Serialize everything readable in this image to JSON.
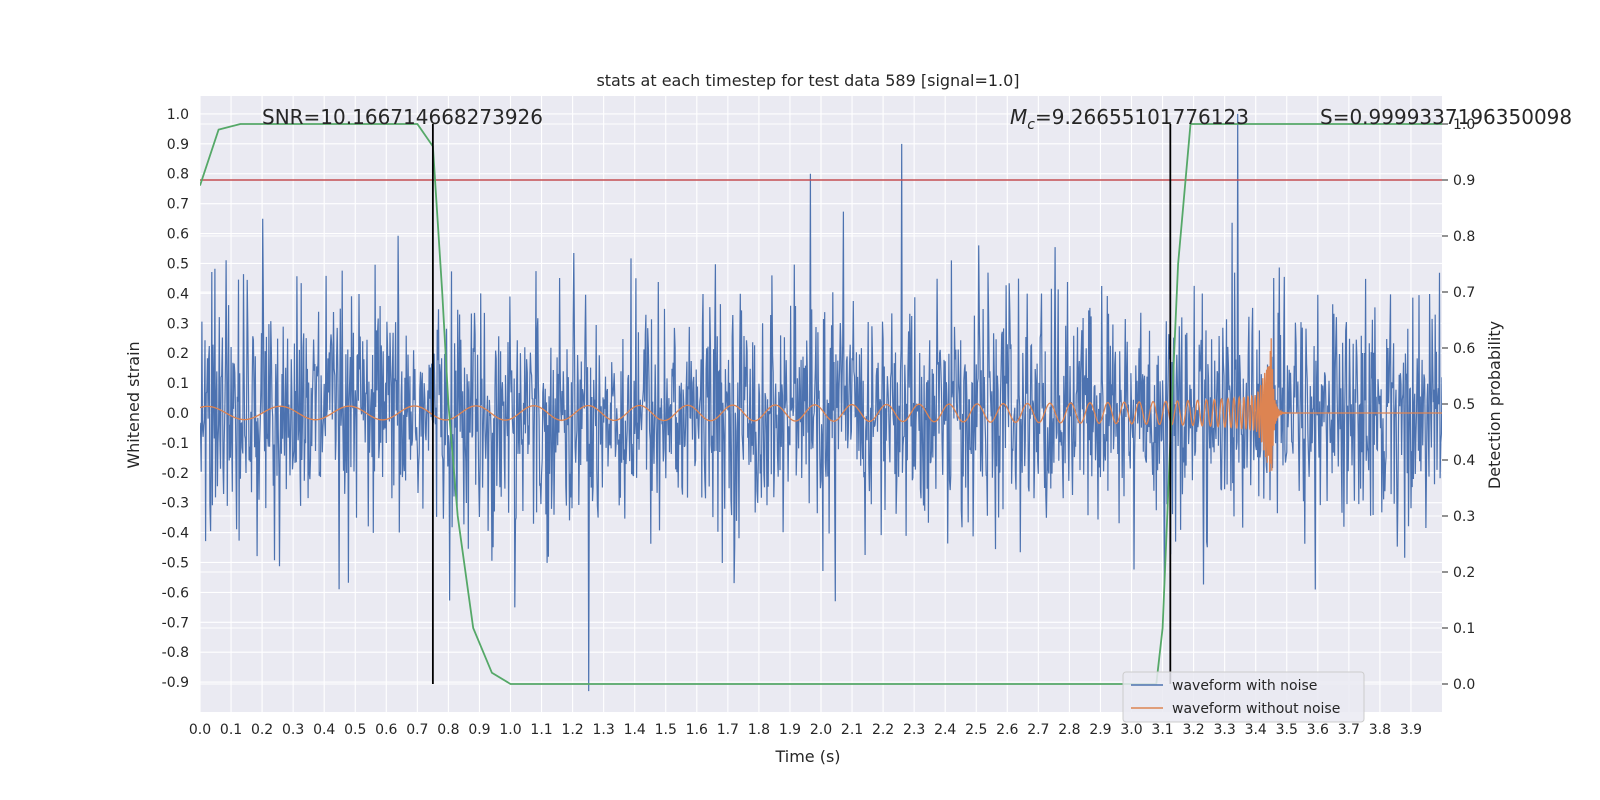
{
  "chart_data": {
    "type": "line",
    "title": "stats at each timestep for test data 589 [signal=1.0]",
    "xlabel": "Time (s)",
    "ylabel": "Whitened strain",
    "y2label": "Detection probability",
    "xlim": [
      0.0,
      4.0
    ],
    "ylim": [
      -1.0,
      1.06
    ],
    "y2lim": [
      -0.05,
      1.05
    ],
    "xticks": [
      "0.0",
      "0.1",
      "0.2",
      "0.3",
      "0.4",
      "0.5",
      "0.6",
      "0.7",
      "0.8",
      "0.9",
      "1.0",
      "1.1",
      "1.2",
      "1.3",
      "1.4",
      "1.5",
      "1.6",
      "1.7",
      "1.8",
      "1.9",
      "2.0",
      "2.1",
      "2.2",
      "2.3",
      "2.4",
      "2.5",
      "2.6",
      "2.7",
      "2.8",
      "2.9",
      "3.0",
      "3.1",
      "3.2",
      "3.3",
      "3.4",
      "3.5",
      "3.6",
      "3.7",
      "3.8",
      "3.9"
    ],
    "yticks": [
      "1.0",
      "0.9",
      "0.8",
      "0.7",
      "0.6",
      "0.5",
      "0.4",
      "0.3",
      "0.2",
      "0.1",
      "0.0",
      "-0.1",
      "-0.2",
      "-0.3",
      "-0.4",
      "-0.5",
      "-0.6",
      "-0.7",
      "-0.8",
      "-0.9"
    ],
    "y2ticks": [
      "1.0",
      "0.9",
      "0.8",
      "0.7",
      "0.6",
      "0.5",
      "0.4",
      "0.3",
      "0.2",
      "0.1",
      "0.0"
    ],
    "annotations": {
      "snr": "SNR=10.166714668273926",
      "mc_label": "M",
      "mc_sub": "c",
      "mc_value": "=9.26655101776123",
      "s": "S=0.9999337196350098"
    },
    "threshold": 0.9,
    "vlines": [
      0.75,
      3.125
    ],
    "series": [
      {
        "name": "waveform with noise",
        "color": "#4c72b0",
        "axis": "left",
        "kind": "noise",
        "amplitude": 0.45,
        "t_range": [
          0.0,
          4.0
        ]
      },
      {
        "name": "waveform without noise",
        "color": "#dd8452",
        "axis": "left",
        "kind": "chirp",
        "t_range": [
          0.0,
          4.0
        ],
        "merger_t": 3.45
      },
      {
        "name": "detection probability",
        "color": "#55a868",
        "axis": "right",
        "x": [
          0.0,
          0.06,
          0.13,
          0.7,
          0.75,
          0.78,
          0.8,
          0.83,
          0.88,
          0.94,
          1.0,
          1.5,
          2.0,
          2.5,
          3.0,
          3.08,
          3.1,
          3.13,
          3.15,
          3.19,
          3.25,
          3.5,
          3.9,
          4.0
        ],
        "values": [
          0.89,
          0.99,
          1.0,
          1.0,
          0.96,
          0.7,
          0.5,
          0.3,
          0.1,
          0.02,
          0.0,
          0.0,
          0.0,
          0.0,
          0.0,
          0.0,
          0.1,
          0.5,
          0.75,
          1.0,
          1.0,
          1.0,
          1.0,
          1.0
        ]
      }
    ],
    "threshold_color": "#c44e52",
    "legend": {
      "position": "lower-right",
      "entries": [
        "waveform with noise",
        "waveform without noise"
      ]
    }
  }
}
